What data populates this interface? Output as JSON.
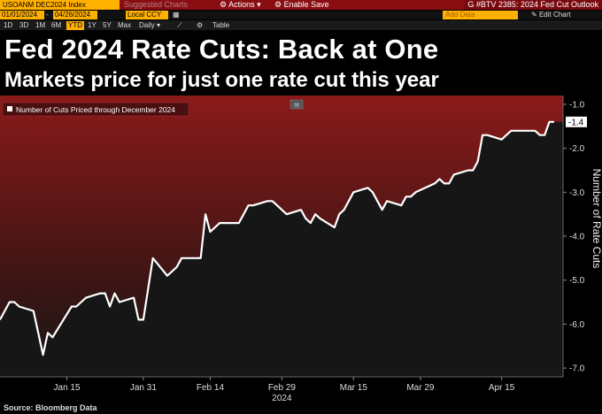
{
  "toolbar": {
    "ticker": "USOANM DEC2024 Index",
    "suggested": "Suggested Charts",
    "actions": "Actions",
    "enable_save": "Enable Save",
    "story": "G #BTV 2385: 2024 Fed Cut Outlook"
  },
  "row2": {
    "start_date": "01/01/2024",
    "end_date": "04/26/2024",
    "currency": "Local CCY",
    "table": "Table",
    "add_data": "Add Data",
    "edit_chart": "Edit Chart"
  },
  "periods": [
    "1D",
    "3D",
    "1M",
    "6M",
    "YTD",
    "1Y",
    "5Y",
    "Max"
  ],
  "frequency": "Daily",
  "headline": "Fed 2024 Rate Cuts: Back at One",
  "subhead": "Markets price for just one rate cut this year",
  "source": "Source: Bloomberg Data",
  "colors": {
    "background_top": "#8b1a1a",
    "background_bottom": "#151515",
    "line": "#ffffff",
    "accent": "#ffb000"
  },
  "chart_data": {
    "type": "area",
    "series": [
      {
        "name": "Number of Cuts Priced through December 2024",
        "x": [
          "2024-01-01",
          "2024-01-03",
          "2024-01-04",
          "2024-01-05",
          "2024-01-08",
          "2024-01-09",
          "2024-01-10",
          "2024-01-11",
          "2024-01-12",
          "2024-01-16",
          "2024-01-17",
          "2024-01-18",
          "2024-01-19",
          "2024-01-22",
          "2024-01-23",
          "2024-01-24",
          "2024-01-25",
          "2024-01-26",
          "2024-01-29",
          "2024-01-30",
          "2024-01-31",
          "2024-02-01",
          "2024-02-02",
          "2024-02-05",
          "2024-02-06",
          "2024-02-07",
          "2024-02-08",
          "2024-02-09",
          "2024-02-12",
          "2024-02-13",
          "2024-02-14",
          "2024-02-15",
          "2024-02-16",
          "2024-02-20",
          "2024-02-21",
          "2024-02-22",
          "2024-02-23",
          "2024-02-26",
          "2024-02-27",
          "2024-02-28",
          "2024-02-29",
          "2024-03-01",
          "2024-03-04",
          "2024-03-05",
          "2024-03-06",
          "2024-03-07",
          "2024-03-08",
          "2024-03-11",
          "2024-03-12",
          "2024-03-13",
          "2024-03-14",
          "2024-03-15",
          "2024-03-18",
          "2024-03-19",
          "2024-03-20",
          "2024-03-21",
          "2024-03-22",
          "2024-03-25",
          "2024-03-26",
          "2024-03-27",
          "2024-03-28",
          "2024-04-01",
          "2024-04-02",
          "2024-04-03",
          "2024-04-04",
          "2024-04-05",
          "2024-04-08",
          "2024-04-09",
          "2024-04-10",
          "2024-04-11",
          "2024-04-12",
          "2024-04-15",
          "2024-04-16",
          "2024-04-17",
          "2024-04-18",
          "2024-04-19",
          "2024-04-22",
          "2024-04-23",
          "2024-04-24",
          "2024-04-25",
          "2024-04-26"
        ],
        "values": [
          -5.9,
          -5.5,
          -5.5,
          -5.6,
          -5.7,
          -6.2,
          -6.7,
          -6.2,
          -6.3,
          -5.6,
          -5.6,
          -5.5,
          -5.4,
          -5.3,
          -5.3,
          -5.6,
          -5.3,
          -5.5,
          -5.4,
          -5.9,
          -5.9,
          -5.2,
          -4.5,
          -4.9,
          -4.8,
          -4.7,
          -4.5,
          -4.5,
          -4.5,
          -3.5,
          -3.9,
          -3.8,
          -3.7,
          -3.7,
          -3.5,
          -3.3,
          -3.3,
          -3.2,
          -3.2,
          -3.3,
          -3.4,
          -3.5,
          -3.4,
          -3.6,
          -3.7,
          -3.5,
          -3.6,
          -3.8,
          -3.5,
          -3.4,
          -3.2,
          -3.0,
          -2.9,
          -3.0,
          -3.2,
          -3.4,
          -3.2,
          -3.3,
          -3.1,
          -3.1,
          -3.0,
          -2.8,
          -2.7,
          -2.8,
          -2.8,
          -2.6,
          -2.5,
          -2.5,
          -2.3,
          -1.7,
          -1.7,
          -1.8,
          -1.7,
          -1.6,
          -1.6,
          -1.6,
          -1.6,
          -1.7,
          -1.7,
          -1.4,
          -1.4
        ]
      }
    ],
    "last_value_label": "-1.4",
    "x_ticks": [
      "Jan 15",
      "Jan 31",
      "Feb 14",
      "Feb 29",
      "Mar 15",
      "Mar 29",
      "Apr 15"
    ],
    "x_tick_dates": [
      "2024-01-15",
      "2024-01-31",
      "2024-02-14",
      "2024-02-29",
      "2024-03-15",
      "2024-03-29",
      "2024-04-15"
    ],
    "x_year_label": "2024",
    "y_ticks": [
      "-1.0",
      "-2.0",
      "-3.0",
      "-4.0",
      "-5.0",
      "-6.0",
      "-7.0"
    ],
    "y_tick_values": [
      -1,
      -2,
      -3,
      -4,
      -5,
      -6,
      -7
    ],
    "ylim": [
      -7.2,
      -0.8
    ],
    "xlim": [
      "2024-01-01",
      "2024-04-26"
    ],
    "ylabel": "Number of Rate Cuts",
    "legend_position": "top-left",
    "grid": false
  }
}
